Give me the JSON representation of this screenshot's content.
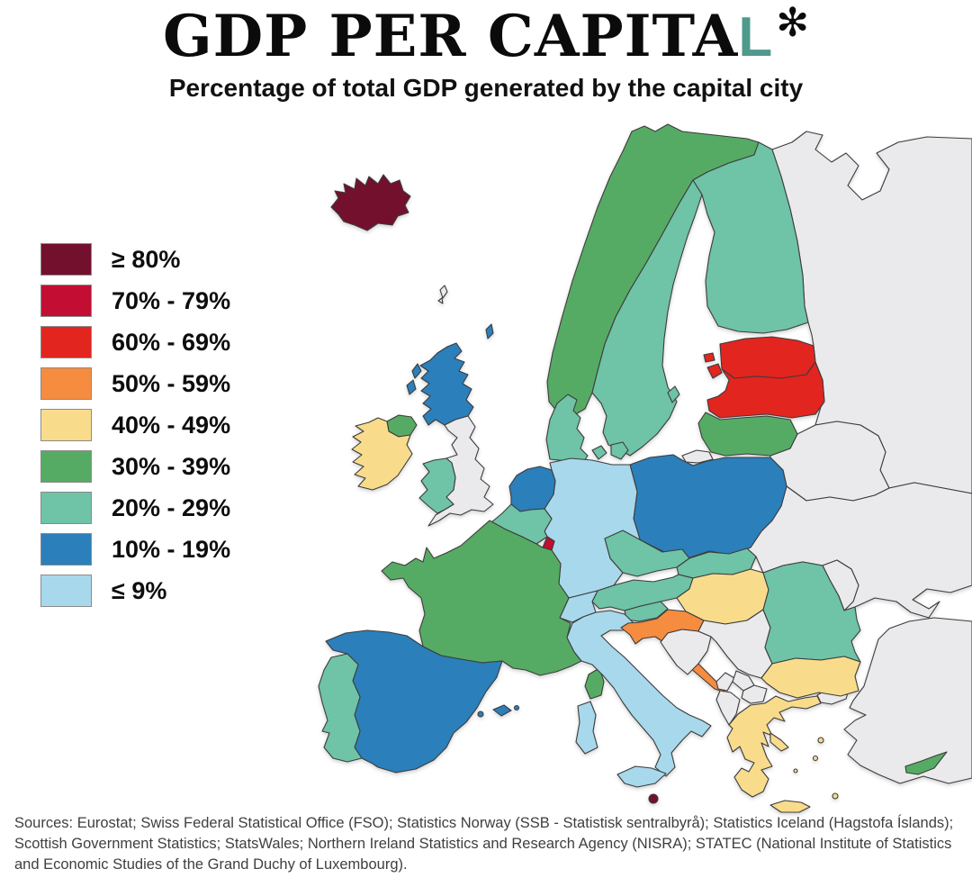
{
  "title": {
    "text_black": "GDP PER CAPITA",
    "text_accent": "L",
    "accent_color": "#4e9a8c",
    "asterisk": "✻"
  },
  "subtitle": "Percentage of total GDP generated by the capital city",
  "legend": {
    "items": [
      {
        "id": "gte80",
        "label": "≥ 80%",
        "color": "#72102d"
      },
      {
        "id": "b70",
        "label": "70% - 79%",
        "color": "#c30d32"
      },
      {
        "id": "b60",
        "label": "60% - 69%",
        "color": "#e2251f"
      },
      {
        "id": "b50",
        "label": "50% - 59%",
        "color": "#f68c3f"
      },
      {
        "id": "b40",
        "label": "40% - 49%",
        "color": "#f9dc8b"
      },
      {
        "id": "b30",
        "label": "30% - 39%",
        "color": "#56ab64"
      },
      {
        "id": "b20",
        "label": "20% - 29%",
        "color": "#6fc3a6"
      },
      {
        "id": "b10",
        "label": "10% - 19%",
        "color": "#2b7fba"
      },
      {
        "id": "lte9",
        "label": "≤ 9%",
        "color": "#a8d8eb"
      }
    ]
  },
  "map": {
    "sea_color": "#ffffff",
    "no_data_color": "#eaeaec",
    "stroke_color": "#3c3c3c",
    "countries": {
      "iceland": "gte80",
      "malta": "gte80",
      "luxembourg": "b70",
      "estonia": "b60",
      "latvia": "b60",
      "croatia": "b50",
      "ireland": "b40",
      "hungary": "b40",
      "bulgaria": "b40",
      "greece": "b40",
      "norway": "b30",
      "lithuania": "b30",
      "france": "b30",
      "northern-ireland": "b30",
      "cyprus": "b30",
      "sweden": "b20",
      "finland": "b20",
      "denmark": "b20",
      "belgium": "b20",
      "wales": "b20",
      "portugal": "b20",
      "czechia": "b20",
      "slovakia": "b20",
      "austria": "b20",
      "slovenia": "b20",
      "romania": "b20",
      "scotland": "b10",
      "netherlands": "b10",
      "poland": "b10",
      "spain": "b10",
      "germany": "lte9",
      "switzerland": "lte9",
      "italy": "lte9",
      "england": "nodata",
      "russia": "nodata",
      "belarus": "nodata",
      "ukraine": "nodata",
      "moldova": "nodata",
      "kaliningrad": "nodata",
      "serbia": "nodata",
      "bosnia-herzegovina": "nodata",
      "montenegro": "nodata",
      "kosovo": "nodata",
      "north-macedonia": "nodata",
      "albania": "nodata",
      "turkey": "nodata",
      "faroe-islands": "nodata"
    }
  },
  "sources": "Sources: Eurostat; Swiss Federal Statistical Office (FSO); Statistics Norway (SSB - Statistisk sentralbyrå); Statistics Iceland (Hagstofa Íslands); Scottish Government Statistics; StatsWales; Northern Ireland Statistics and Research Agency (NISRA); STATEC (National Institute of Statistics and Economic Studies of the Grand Duchy of Luxembourg)."
}
